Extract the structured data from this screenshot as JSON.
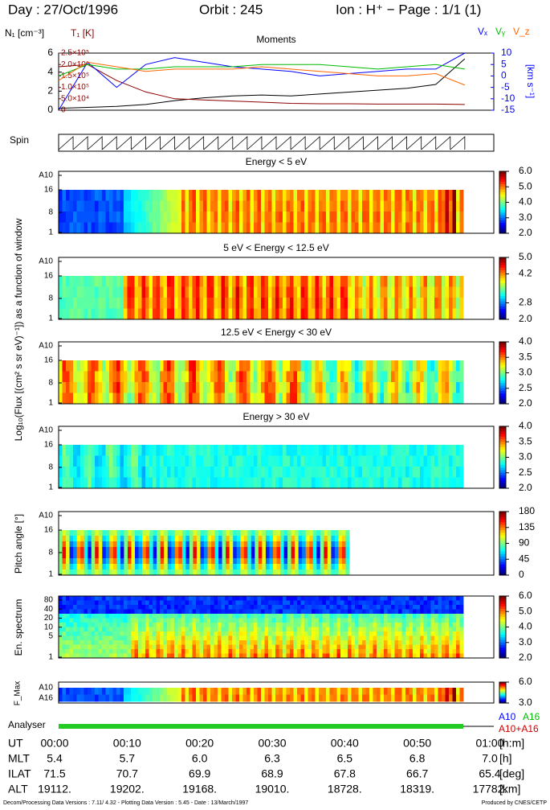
{
  "chart_data": {
    "type": "line",
    "title": "Moments",
    "x": [
      0,
      4,
      8,
      12,
      16,
      20,
      24,
      28,
      32,
      36,
      40,
      44,
      48,
      52,
      56
    ],
    "xlim": [
      0,
      60
    ],
    "ylim": [
      0,
      6
    ],
    "yticks": [
      0,
      2,
      4,
      6
    ],
    "y2lim": [
      -15,
      10
    ],
    "y2ticks": [
      10,
      5,
      0,
      -5,
      -10,
      -15
    ],
    "y3lim": [
      0,
      250000
    ],
    "y3ticks": [
      {
        "value": 0,
        "label": "0"
      },
      {
        "value": 50000,
        "label": "5.0×10⁴"
      },
      {
        "value": 100000,
        "label": "1.0×10⁵"
      },
      {
        "value": 150000,
        "label": "1.5×10⁵"
      },
      {
        "value": 200000,
        "label": "2.0×10⁵"
      },
      {
        "value": 250000,
        "label": "2.5×10⁵"
      }
    ],
    "y_label": "N₁ [cm⁻³]",
    "y3_label": "T₁ [K]",
    "y2_label": "[km s⁻¹]",
    "series": [
      {
        "name": "N₁",
        "color": "#000000",
        "axis": "y",
        "values": [
          0.2,
          0.3,
          0.4,
          0.6,
          1.0,
          1.3,
          1.5,
          1.6,
          1.5,
          1.7,
          1.9,
          2.1,
          2.3,
          2.7,
          5.4
        ]
      },
      {
        "name": "T₁",
        "color": "#8b0000",
        "axis": "y3",
        "values": [
          190000,
          200000,
          130000,
          80000,
          50000,
          45000,
          40000,
          35000,
          30000,
          28000,
          28000,
          27000,
          27000,
          27000,
          25000
        ]
      },
      {
        "name": "Vₓ",
        "color": "#0000ff",
        "axis": "y2",
        "values": [
          -15,
          6,
          -5,
          5,
          8,
          6,
          4,
          3,
          2,
          0,
          1,
          2,
          3,
          3,
          10
        ]
      },
      {
        "name": "Vᵧ",
        "color": "#00bb00",
        "axis": "y2",
        "values": [
          0,
          5,
          3,
          3,
          4,
          4,
          4,
          5,
          5,
          5,
          4,
          3,
          4,
          5,
          3
        ]
      },
      {
        "name": "V_z",
        "color": "#ff6600",
        "axis": "y2",
        "values": [
          -2,
          6,
          4,
          2,
          3,
          3,
          3,
          4,
          3,
          2,
          1,
          0,
          0,
          1,
          -4
        ]
      }
    ]
  },
  "page": {
    "header": {
      "day": "Day : 27/Oct/1996",
      "orbit": "Orbit :    245",
      "ion": "Ion : H⁺ − Page : 1/1 (1)"
    },
    "spin": "Spin",
    "side_label": "Log₁₀(Flux [(cm² s sr eV)⁻¹]) as a function of window",
    "panels": [
      {
        "title": "Energy < 5 eV",
        "yticks": [
          "A10",
          "16",
          "8",
          "1"
        ],
        "cbar": [
          "6.0",
          "5.0",
          "4.0",
          "3.0",
          "2.0"
        ]
      },
      {
        "title": "5 eV < Energy < 12.5 eV",
        "yticks": [
          "A10",
          "16",
          "8",
          "1"
        ],
        "cbar": [
          "5.0",
          "4.2",
          "2.8",
          "2.0"
        ]
      },
      {
        "title": "12.5 eV < Energy < 30 eV",
        "yticks": [
          "A10",
          "16",
          "8",
          "1"
        ],
        "cbar": [
          "4.0",
          "3.5",
          "3.0",
          "2.5",
          "2.0"
        ]
      },
      {
        "title": "Energy > 30 eV",
        "yticks": [
          "A10",
          "16",
          "8",
          "1"
        ],
        "cbar": [
          "4.0",
          "3.5",
          "3.0",
          "2.5",
          "2.0"
        ]
      }
    ],
    "pitch": {
      "label": "Pitch angle [°]",
      "yticks": [
        "A10",
        "16",
        "8",
        "1"
      ],
      "cbar": [
        "180",
        "135",
        "90",
        "45",
        "0"
      ]
    },
    "spectrum": {
      "label": "En. spectrum",
      "yticks": [
        "80",
        "40",
        "20",
        "10",
        "5",
        "1"
      ],
      "cbar": [
        "6.0",
        "5.0",
        "4.0",
        "3.0",
        "2.0"
      ]
    },
    "fmax": {
      "label": "F_Max",
      "yticks": [
        "A10",
        "A16"
      ],
      "cbar": [
        "6.0",
        "3.0"
      ]
    },
    "analyser": {
      "label": "Analyser",
      "legend": [
        "A10",
        "A16",
        "A10+A16"
      ]
    },
    "table": {
      "rows": [
        [
          "UT",
          "00:00",
          "00:10",
          "00:20",
          "00:30",
          "00:40",
          "00:50",
          "01:00",
          "[h:m]"
        ],
        [
          "MLT",
          "5.4",
          "5.7",
          "6.0",
          "6.3",
          "6.5",
          "6.8",
          "7.0",
          "[h]"
        ],
        [
          "ILAT",
          "71.5",
          "70.7",
          "69.9",
          "68.9",
          "67.8",
          "66.7",
          "65.4",
          "[deg]"
        ],
        [
          "ALT",
          "19112.",
          "19202.",
          "19168.",
          "19010.",
          "18728.",
          "18319.",
          "17782.",
          "[km]"
        ]
      ]
    },
    "footer": {
      "left": "Decom/Processing Data Versions : 7.11/ 4.32 - Plotting Data Version : 5.45 - Date : 13/March/1997",
      "right": "Produced by CNES/CETP"
    }
  }
}
